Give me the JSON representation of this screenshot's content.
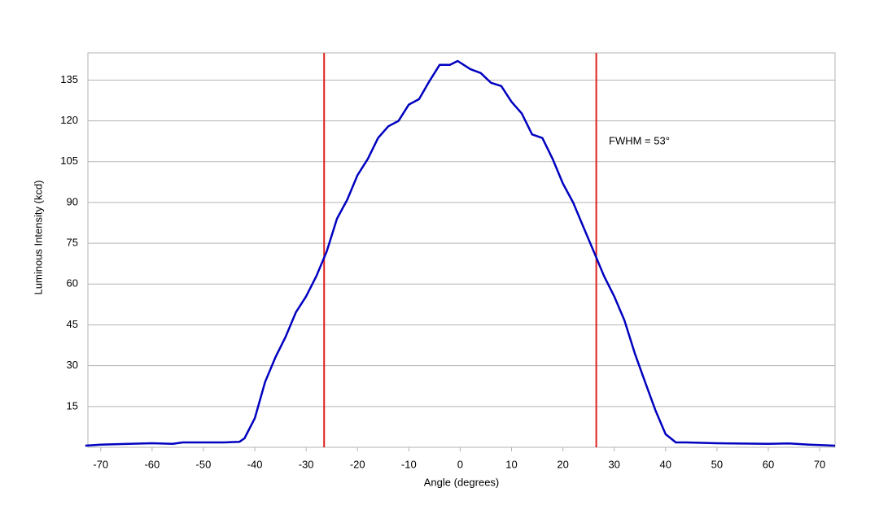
{
  "chart_data": {
    "type": "line",
    "x_label": "Angle (degrees)",
    "y_label": "Luminous Intensity (kcd)",
    "x": [
      -73,
      -70,
      -66,
      -60,
      -56,
      -54,
      -50,
      -46,
      -43,
      -42,
      -40,
      -38,
      -36,
      -34,
      -32,
      -30,
      -28,
      -26,
      -24,
      -22,
      -20,
      -18,
      -16,
      -14,
      -12,
      -10,
      -8,
      -6,
      -4,
      -2,
      -0.5,
      2,
      4,
      6,
      8,
      10,
      12,
      14,
      16,
      18,
      20,
      22,
      24,
      26,
      28,
      30,
      32,
      34,
      36,
      38,
      40,
      42,
      44,
      50,
      60,
      64,
      68,
      73
    ],
    "values": [
      0.6,
      1,
      1.2,
      1.5,
      1.3,
      1.8,
      1.8,
      1.8,
      2,
      3.3,
      10.7,
      24,
      33,
      40.6,
      49.6,
      55.5,
      63,
      72,
      84,
      91,
      100,
      106,
      113.7,
      118,
      120,
      126,
      128,
      134.6,
      140.6,
      140.6,
      142,
      139,
      137.6,
      134,
      132.8,
      127,
      122.7,
      115,
      113.7,
      106,
      97,
      90,
      81,
      72,
      63,
      55.5,
      46.6,
      34.6,
      24,
      13.7,
      4.8,
      1.8,
      1.8,
      1.5,
      1.3,
      1.4,
      1,
      0.6
    ],
    "color": "#0000c0",
    "xlim": [
      -72.5,
      73
    ],
    "ylim": [
      0,
      145
    ],
    "xticks": [
      -70,
      -60,
      -50,
      -40,
      -30,
      -20,
      -10,
      0,
      10,
      20,
      30,
      40,
      50,
      60,
      70
    ],
    "yticks": [
      15,
      30,
      45,
      60,
      75,
      90,
      105,
      120,
      135
    ],
    "grid": true,
    "vlines": [
      -26.5,
      26.5
    ],
    "vline_color": "#e0201c",
    "annotation": "FWHM = 53°"
  }
}
